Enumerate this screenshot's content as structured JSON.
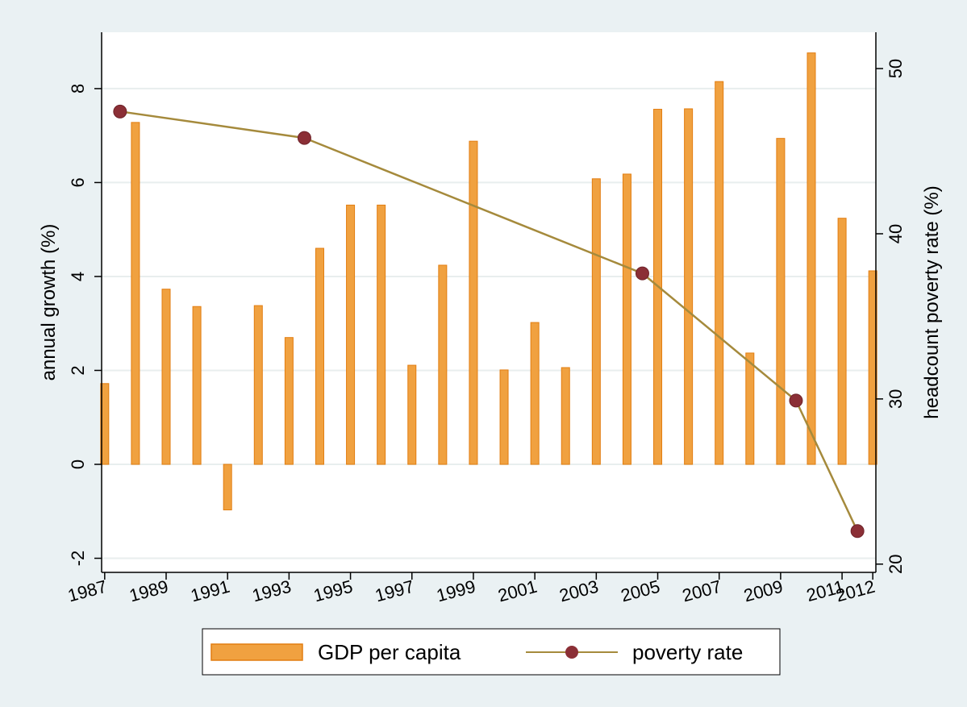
{
  "chart_data": {
    "type": "bar+line",
    "title": "",
    "background_color": "#eaf1f3",
    "plot_background": "#ffffff",
    "grid": true,
    "legend_position": "bottom",
    "left_axis": {
      "label": "annual growth (%)",
      "ylim": [
        -2.3,
        9.2
      ],
      "ticks": [
        -2,
        0,
        2,
        4,
        6,
        8
      ],
      "tick_labels": [
        "-2",
        "0",
        "2",
        "4",
        "6",
        "8"
      ]
    },
    "right_axis": {
      "label": "headcount poverty rate (%)",
      "ylim": [
        19.5,
        52.2
      ],
      "ticks": [
        20,
        30,
        40,
        50
      ],
      "tick_labels": [
        "20",
        "30",
        "40",
        "50"
      ]
    },
    "x_axis": {
      "xlim": [
        1986.9,
        2012.1
      ],
      "ticks": [
        1987,
        1989,
        1991,
        1993,
        1995,
        1997,
        1999,
        2001,
        2003,
        2005,
        2007,
        2009,
        2011,
        2012
      ],
      "tick_labels": [
        "1987",
        "1989",
        "1991",
        "1993",
        "1995",
        "1997",
        "1999",
        "2001",
        "2003",
        "2005",
        "2007",
        "2009",
        "2011",
        "2012"
      ]
    },
    "series": [
      {
        "name": "GDP per capita",
        "kind": "bar",
        "axis": "left",
        "color": "#f0a140",
        "edge_color": "#e27d10",
        "x": [
          1987,
          1988,
          1989,
          1990,
          1991,
          1992,
          1993,
          1994,
          1995,
          1996,
          1997,
          1998,
          1999,
          2000,
          2001,
          2002,
          2003,
          2004,
          2005,
          2006,
          2007,
          2008,
          2009,
          2010,
          2011,
          2012
        ],
        "values": [
          1.72,
          7.28,
          3.73,
          3.36,
          -0.97,
          3.38,
          2.7,
          4.6,
          5.52,
          5.52,
          2.11,
          4.24,
          6.88,
          2.01,
          3.02,
          2.06,
          6.08,
          6.18,
          7.56,
          7.57,
          8.15,
          2.37,
          6.94,
          8.76,
          5.24,
          4.12
        ]
      },
      {
        "name": "poverty rate",
        "kind": "line",
        "axis": "right",
        "line_color": "#a58a3c",
        "marker_color": "#8b2f36",
        "x": [
          1987.5,
          1993.5,
          2004.5,
          2009.5,
          2011.5
        ],
        "values": [
          47.4,
          45.8,
          37.6,
          29.9,
          22.0
        ]
      }
    ]
  }
}
